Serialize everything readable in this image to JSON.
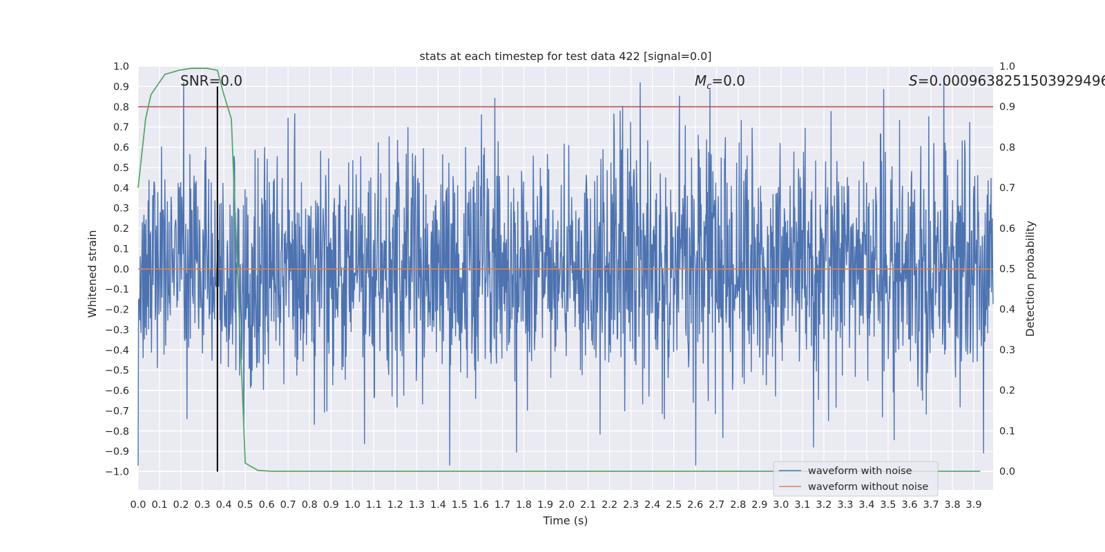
{
  "chart_data": {
    "type": "line",
    "title": "stats at each timestep for test data 422 [signal=0.0]",
    "xlabel": "Time (s)",
    "ylabel": "Whitened strain",
    "y2label": "Detection probability",
    "xlim": [
      0.0,
      3.99
    ],
    "ylim": [
      -1.09,
      1.0
    ],
    "y2lim": [
      -0.046,
      1.0
    ],
    "xticks": [
      "0.0",
      "0.1",
      "0.2",
      "0.3",
      "0.4",
      "0.5",
      "0.6",
      "0.7",
      "0.8",
      "0.9",
      "1.0",
      "1.1",
      "1.2",
      "1.3",
      "1.4",
      "1.5",
      "1.6",
      "1.7",
      "1.8",
      "1.9",
      "2.0",
      "2.1",
      "2.2",
      "2.3",
      "2.4",
      "2.5",
      "2.6",
      "2.7",
      "2.8",
      "2.9",
      "3.0",
      "3.1",
      "3.2",
      "3.3",
      "3.4",
      "3.5",
      "3.6",
      "3.7",
      "3.8",
      "3.9"
    ],
    "yticks": [
      "1.0",
      "0.9",
      "0.8",
      "0.7",
      "0.6",
      "0.5",
      "0.4",
      "0.3",
      "0.2",
      "0.1",
      "0.0",
      "−0.1",
      "−0.2",
      "−0.3",
      "−0.4",
      "−0.5",
      "−0.6",
      "−0.7",
      "−0.8",
      "−0.9",
      "−1.0"
    ],
    "y2ticks": [
      "1.0",
      "0.9",
      "0.8",
      "0.7",
      "0.6",
      "0.5",
      "0.4",
      "0.3",
      "0.2",
      "0.1",
      "0.0"
    ],
    "grid": true,
    "legend_position": "lower-right",
    "annotations": {
      "snr": "SNR=0.0",
      "mc_symbol": "M",
      "mc_sub": "c",
      "mc_value": "=0.0",
      "s_symbol": "S",
      "s_value": "=0.0009638251503929496"
    },
    "series": [
      {
        "name": "waveform with noise",
        "color": "#4c72b0",
        "description": "noisy whitened strain, dense high-frequency oscillation between about -0.95 and 0.9 across 0.0–3.99 s",
        "noise_amplitude": 0.3,
        "x_range": [
          0.0,
          3.99
        ],
        "samples": 2048
      },
      {
        "name": "waveform without noise",
        "color": "#dd8452",
        "x": [
          0.0,
          3.99
        ],
        "y": [
          0.0,
          0.0
        ]
      },
      {
        "color": "#55a868",
        "axis": "right",
        "x": [
          0.0,
          0.035,
          0.06,
          0.125,
          0.19,
          0.25,
          0.32,
          0.37,
          0.4,
          0.435,
          0.5,
          0.56,
          0.625,
          0.7,
          1.0,
          2.0,
          3.0,
          3.93
        ],
        "y": [
          0.7,
          0.87,
          0.93,
          0.98,
          0.99,
          0.995,
          0.995,
          0.99,
          0.93,
          0.87,
          0.02,
          0.002,
          0.0,
          0.0,
          0.0,
          0.0,
          0.0,
          0.0
        ]
      }
    ],
    "threshold_line": {
      "axis": "right",
      "y": 0.9,
      "color": "#c44e52"
    },
    "marker_line": {
      "x": 0.37,
      "y_from": -1.0,
      "y_to": 0.9,
      "color": "#000000"
    }
  }
}
